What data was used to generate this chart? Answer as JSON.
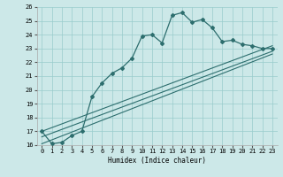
{
  "title": "",
  "xlabel": "Humidex (Indice chaleur)",
  "xlim": [
    -0.5,
    23.5
  ],
  "ylim": [
    16,
    26
  ],
  "xticks": [
    0,
    1,
    2,
    3,
    4,
    5,
    6,
    7,
    8,
    9,
    10,
    11,
    12,
    13,
    14,
    15,
    16,
    17,
    18,
    19,
    20,
    21,
    22,
    23
  ],
  "yticks": [
    16,
    17,
    18,
    19,
    20,
    21,
    22,
    23,
    24,
    25,
    26
  ],
  "bg_color": "#cce8e8",
  "grid_color": "#99cccc",
  "line_color": "#2d6e6e",
  "main_x": [
    0,
    1,
    2,
    3,
    4,
    5,
    6,
    7,
    8,
    9,
    10,
    11,
    12,
    13,
    14,
    15,
    16,
    17,
    18,
    19,
    20,
    21,
    22,
    23
  ],
  "main_y": [
    17.0,
    16.1,
    16.2,
    16.7,
    17.0,
    19.5,
    20.5,
    21.2,
    21.6,
    22.3,
    23.9,
    24.0,
    23.4,
    25.4,
    25.6,
    24.9,
    25.1,
    24.5,
    23.5,
    23.6,
    23.3,
    23.2,
    23.0,
    23.0
  ],
  "ref_line1_x": [
    0,
    23
  ],
  "ref_line1_y": [
    17.0,
    23.2
  ],
  "ref_line2_x": [
    0,
    23
  ],
  "ref_line2_y": [
    16.6,
    22.8
  ],
  "ref_line3_x": [
    0,
    23
  ],
  "ref_line3_y": [
    16.1,
    22.6
  ]
}
